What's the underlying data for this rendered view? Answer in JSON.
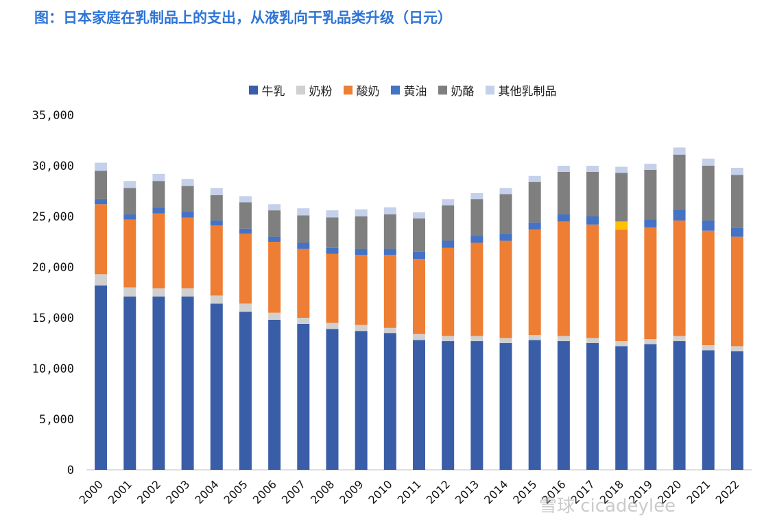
{
  "title": "图：日本家庭在乳制品上的支出，从液乳向干乳品类升级（日元）",
  "watermark": "雪球 cicadeylee",
  "colors": {
    "milk": "#3A5DA8",
    "powder": "#D0D0D0",
    "yogurt": "#EE7E33",
    "butter": "#4472C4",
    "cheese": "#7F7F7F",
    "other": "#C5D0EA",
    "highlight": "#FFC000"
  },
  "chart_data": {
    "type": "bar",
    "stacked": true,
    "categories": [
      "2000",
      "2001",
      "2002",
      "2003",
      "2004",
      "2005",
      "2006",
      "2007",
      "2008",
      "2009",
      "2010",
      "2011",
      "2012",
      "2013",
      "2014",
      "2015",
      "2016",
      "2017",
      "2018",
      "2019",
      "2020",
      "2021",
      "2022"
    ],
    "series": [
      {
        "name": "牛乳",
        "key": "milk",
        "values": [
          18200,
          17100,
          17100,
          17100,
          16400,
          15600,
          14800,
          14400,
          13900,
          13700,
          13500,
          12800,
          12700,
          12700,
          12500,
          12800,
          12700,
          12500,
          12200,
          12400,
          12700,
          11800,
          11700
        ]
      },
      {
        "name": "奶粉",
        "key": "powder",
        "values": [
          1100,
          900,
          800,
          800,
          800,
          800,
          700,
          600,
          600,
          600,
          500,
          600,
          500,
          500,
          500,
          500,
          500,
          500,
          500,
          500,
          500,
          500,
          500
        ]
      },
      {
        "name": "酸奶",
        "key": "yogurt",
        "values": [
          6900,
          6700,
          7400,
          7000,
          6900,
          6900,
          7000,
          6800,
          6800,
          6900,
          7200,
          7400,
          8700,
          9200,
          9600,
          10400,
          11300,
          11200,
          11000,
          11000,
          11400,
          11300,
          10800
        ]
      },
      {
        "name": "黄油",
        "key": "butter",
        "values": [
          500,
          500,
          600,
          600,
          500,
          500,
          500,
          600,
          600,
          600,
          600,
          700,
          700,
          700,
          700,
          700,
          700,
          800,
          800,
          800,
          1100,
          1000,
          900
        ]
      },
      {
        "name": "奶酪",
        "key": "cheese",
        "values": [
          2800,
          2600,
          2600,
          2500,
          2500,
          2600,
          2600,
          2700,
          3000,
          3200,
          3400,
          3300,
          3500,
          3600,
          3900,
          4000,
          4200,
          4400,
          4800,
          4900,
          5400,
          5400,
          5200
        ]
      },
      {
        "name": "其他乳制品",
        "key": "other",
        "values": [
          800,
          700,
          700,
          700,
          700,
          600,
          600,
          700,
          700,
          700,
          700,
          600,
          600,
          600,
          600,
          600,
          600,
          600,
          600,
          600,
          700,
          700,
          700
        ]
      }
    ],
    "highlight": {
      "category": "2018",
      "series": "黄油"
    },
    "ylim": [
      0,
      35000
    ],
    "yticks": [
      0,
      5000,
      10000,
      15000,
      20000,
      25000,
      30000,
      35000
    ],
    "ytick_labels": [
      "0",
      "5,000",
      "10,000",
      "15,000",
      "20,000",
      "25,000",
      "30,000",
      "35,000"
    ],
    "legend_position": "top-center"
  }
}
